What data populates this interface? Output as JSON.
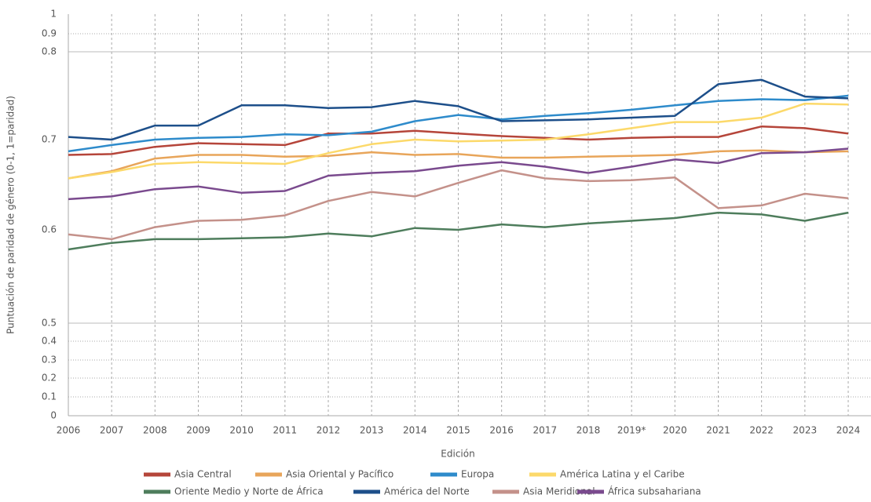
{
  "chart_data": {
    "type": "line",
    "x_label": "Edición",
    "y_label": "Puntuación de paridad de género (0-1, 1=paridad)",
    "categories": [
      "2006",
      "2007",
      "2008",
      "2009",
      "2010",
      "2011",
      "2012",
      "2013",
      "2014",
      "2015",
      "2016",
      "2017",
      "2018",
      "2019*",
      "2020",
      "2021",
      "2022",
      "2023",
      "2024"
    ],
    "ylim": [
      0,
      1
    ],
    "yticks": [
      0,
      0.1,
      0.2,
      0.3,
      0.4,
      0.5,
      0.6,
      0.7,
      0.8,
      0.9,
      1
    ],
    "grid": true,
    "legend": "bottom",
    "series": [
      {
        "name": "Asia Central",
        "color": "#b5453a",
        "values": [
          0.683,
          0.684,
          0.692,
          0.696,
          0.695,
          0.694,
          0.707,
          0.707,
          0.71,
          0.707,
          0.704,
          0.702,
          0.7,
          0.702,
          0.703,
          0.703,
          0.715,
          0.713,
          0.707
        ]
      },
      {
        "name": "Asia Oriental y Pacífico",
        "color": "#e8a55a",
        "values": [
          0.657,
          0.665,
          0.679,
          0.683,
          0.683,
          0.681,
          0.682,
          0.686,
          0.683,
          0.684,
          0.68,
          0.68,
          0.681,
          0.682,
          0.683,
          0.687,
          0.688,
          0.686,
          0.687
        ]
      },
      {
        "name": "Europa",
        "color": "#2e8bcb",
        "values": [
          0.687,
          0.694,
          0.7,
          0.702,
          0.703,
          0.706,
          0.705,
          0.709,
          0.721,
          0.728,
          0.723,
          0.727,
          0.73,
          0.734,
          0.739,
          0.744,
          0.746,
          0.745,
          0.75
        ]
      },
      {
        "name": "América Latina y el Caribe",
        "color": "#fcd96a",
        "values": [
          0.657,
          0.664,
          0.673,
          0.675,
          0.674,
          0.673,
          0.685,
          0.695,
          0.7,
          0.698,
          0.699,
          0.7,
          0.706,
          0.713,
          0.72,
          0.72,
          0.725,
          0.741,
          0.74
        ]
      },
      {
        "name": "Oriente Medio y Norte de África",
        "color": "#4e7d5c",
        "values": [
          0.579,
          0.586,
          0.59,
          0.59,
          0.591,
          0.592,
          0.596,
          0.593,
          0.602,
          0.6,
          0.606,
          0.603,
          0.607,
          0.61,
          0.613,
          0.619,
          0.617,
          0.61,
          0.619
        ]
      },
      {
        "name": "América del Norte",
        "color": "#1d4f8a",
        "values": [
          0.703,
          0.7,
          0.716,
          0.716,
          0.739,
          0.739,
          0.736,
          0.737,
          0.744,
          0.738,
          0.721,
          0.722,
          0.723,
          0.725,
          0.727,
          0.763,
          0.768,
          0.749,
          0.747
        ]
      },
      {
        "name": "Asia Meridional",
        "color": "#c4918a",
        "values": [
          0.595,
          0.59,
          0.603,
          0.61,
          0.611,
          0.616,
          0.632,
          0.642,
          0.637,
          0.652,
          0.666,
          0.657,
          0.654,
          0.655,
          0.658,
          0.624,
          0.627,
          0.64,
          0.635
        ]
      },
      {
        "name": "África subsahariana",
        "color": "#7a4a8e",
        "values": [
          0.634,
          0.637,
          0.645,
          0.648,
          0.641,
          0.643,
          0.66,
          0.663,
          0.665,
          0.671,
          0.675,
          0.67,
          0.663,
          0.67,
          0.678,
          0.674,
          0.685,
          0.686,
          0.69
        ]
      }
    ]
  }
}
